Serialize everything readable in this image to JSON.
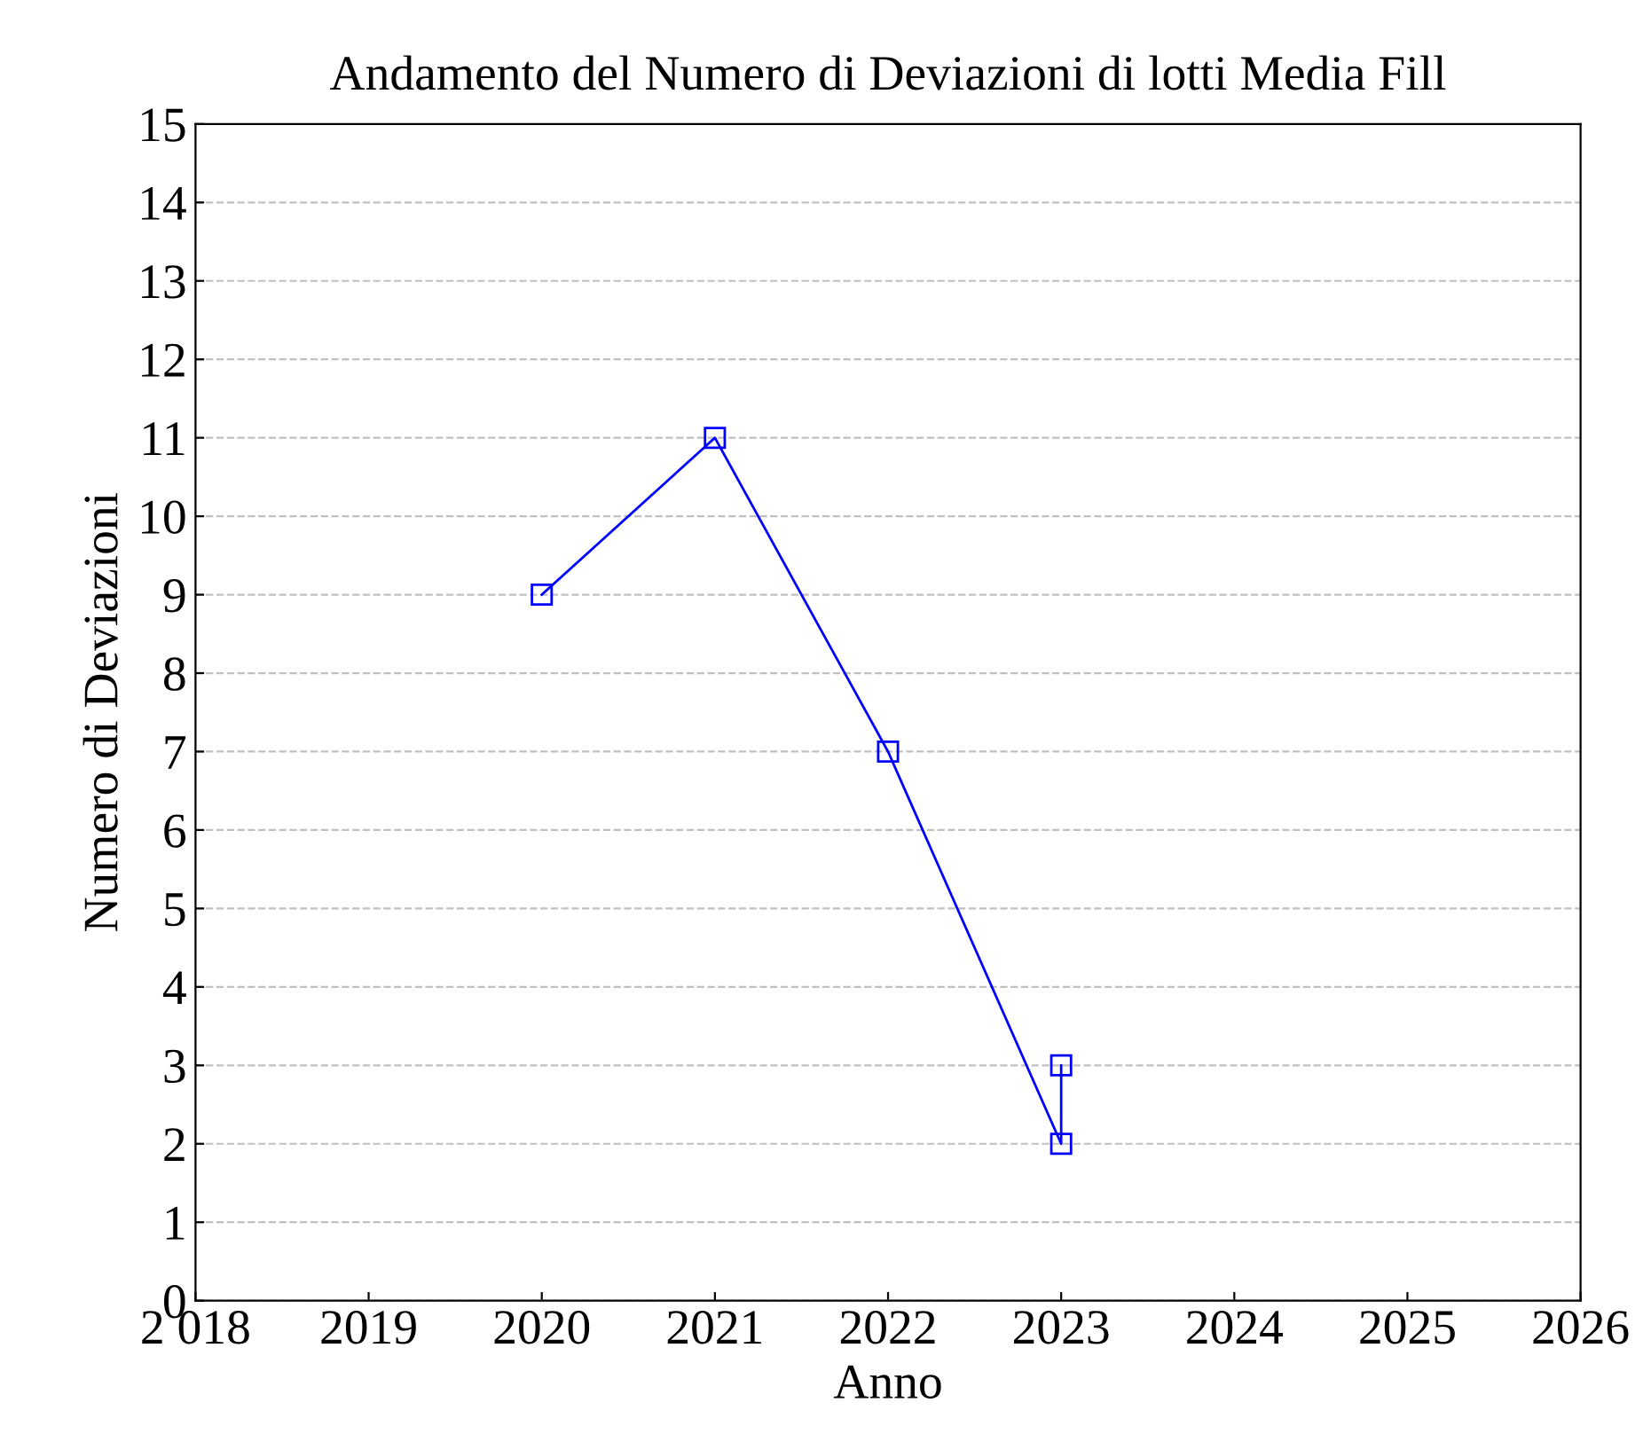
{
  "chart_data": {
    "type": "line",
    "title": "Andamento del Numero di Deviazioni di lotti Media Fill",
    "xlabel": "Anno",
    "ylabel": "Numero di Deviazioni",
    "x": [
      2020,
      2021,
      2022,
      2023,
      2023
    ],
    "series": [
      {
        "color": "#0000ff",
        "values": [
          9,
          11,
          7,
          2,
          3
        ]
      }
    ],
    "xlim": [
      2018,
      2026
    ],
    "xticks": [
      {
        "value": 2018,
        "label": "2 018"
      },
      2019,
      2020,
      2021,
      2022,
      2023,
      2024,
      2025,
      2026
    ],
    "ylim": [
      0,
      15
    ],
    "yticks": [
      0,
      1,
      2,
      3,
      4,
      5,
      6,
      7,
      8,
      9,
      10,
      11,
      12,
      13,
      14,
      15
    ],
    "grid": "y",
    "marker": "square",
    "line_style": "solid"
  }
}
